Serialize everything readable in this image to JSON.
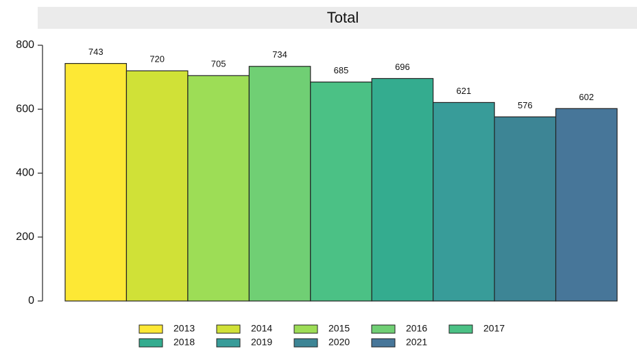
{
  "chart_data": {
    "type": "bar",
    "title": "Total",
    "categories": [
      "2013",
      "2014",
      "2015",
      "2016",
      "2017",
      "2018",
      "2019",
      "2020",
      "2021"
    ],
    "values": [
      743,
      720,
      705,
      734,
      685,
      696,
      621,
      576,
      602
    ],
    "colors": [
      "#fde835",
      "#d0e137",
      "#9ddd56",
      "#70cf74",
      "#4bc185",
      "#34ac8f",
      "#389c99",
      "#3d8595",
      "#477699"
    ],
    "ylim": [
      0,
      800
    ],
    "yticks": [
      0,
      200,
      400,
      600,
      800
    ]
  }
}
